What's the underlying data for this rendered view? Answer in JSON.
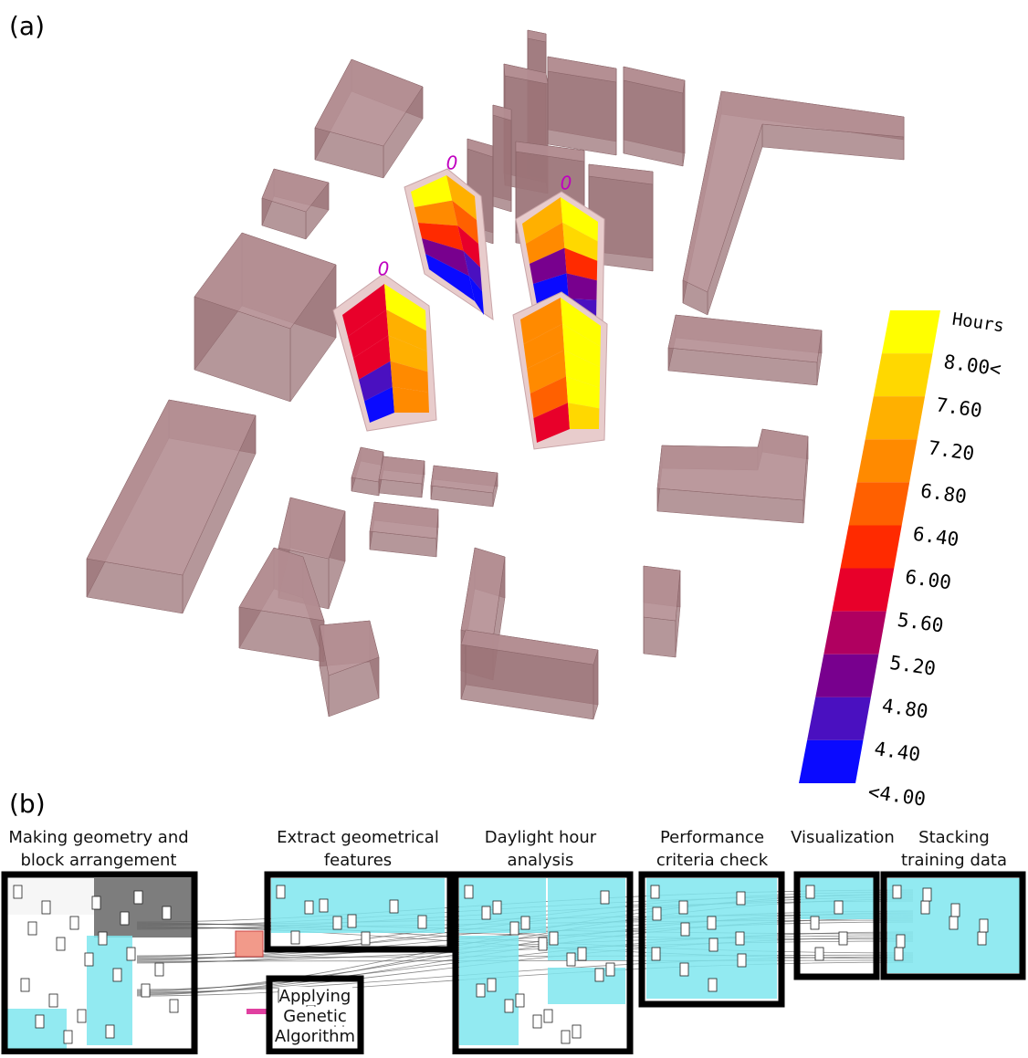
{
  "panel_a": {
    "label": "(a)",
    "tower_labels": [
      "0",
      "0",
      "0"
    ],
    "legend": {
      "title": "Hours",
      "labels": [
        "8.00<",
        "7.60",
        "7.20",
        "6.80",
        "6.40",
        "6.00",
        "5.60",
        "5.20",
        "4.80",
        "4.40",
        "<4.00"
      ],
      "colors": [
        "#ffff00",
        "#ffd800",
        "#ffb000",
        "#ff8a00",
        "#ff6000",
        "#ff2a00",
        "#e8002a",
        "#b00060",
        "#78008e",
        "#4a10c0",
        "#0a0aff"
      ]
    }
  },
  "panel_b": {
    "label": "(b)",
    "steps": [
      {
        "lines": [
          "Making geometry and",
          "block arrangement"
        ]
      },
      {
        "lines": [
          "Extract geometrical",
          "features"
        ]
      },
      {
        "lines": [
          "Applying",
          "Genetic",
          "Algorithm"
        ]
      },
      {
        "lines": [
          "Daylight hour",
          "analysis"
        ]
      },
      {
        "lines": [
          "Performance",
          "criteria check"
        ]
      },
      {
        "lines": [
          "Visualization"
        ]
      },
      {
        "lines": [
          "Stacking",
          "training data"
        ]
      }
    ]
  }
}
